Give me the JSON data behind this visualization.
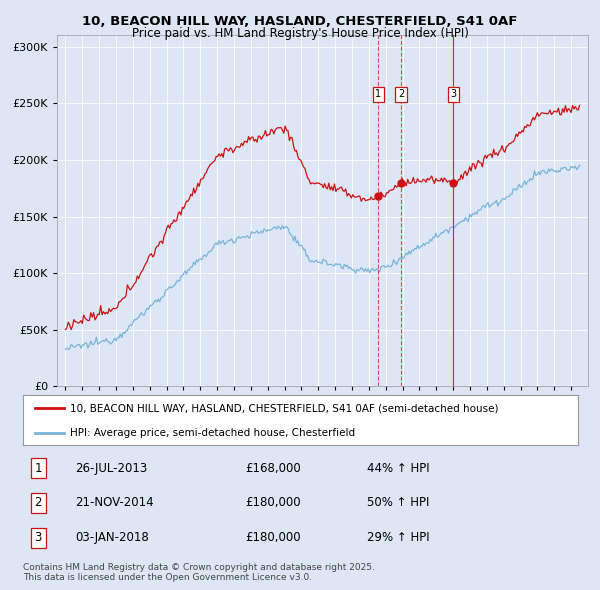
{
  "title_line1": "10, BEACON HILL WAY, HASLAND, CHESTERFIELD, S41 0AF",
  "title_line2": "Price paid vs. HM Land Registry's House Price Index (HPI)",
  "background_color": "#dce6f5",
  "plot_bg_color": "#dce6f5",
  "red_line_label": "10, BEACON HILL WAY, HASLAND, CHESTERFIELD, S41 0AF (semi-detached house)",
  "blue_line_label": "HPI: Average price, semi-detached house, Chesterfield",
  "sale_markers": [
    {
      "date": 2013.57,
      "price": 168000,
      "label": "1"
    },
    {
      "date": 2014.9,
      "price": 180000,
      "label": "2"
    },
    {
      "date": 2018.01,
      "price": 180000,
      "label": "3"
    }
  ],
  "sale_annotations": [
    {
      "label": "1",
      "date_str": "26-JUL-2013",
      "price_str": "£168,000",
      "hpi_str": "44% ↑ HPI"
    },
    {
      "label": "2",
      "date_str": "21-NOV-2014",
      "price_str": "£180,000",
      "hpi_str": "50% ↑ HPI"
    },
    {
      "label": "3",
      "date_str": "03-JAN-2018",
      "price_str": "£180,000",
      "hpi_str": "29% ↑ HPI"
    }
  ],
  "footer": "Contains HM Land Registry data © Crown copyright and database right 2025.\nThis data is licensed under the Open Government Licence v3.0.",
  "ylim": [
    0,
    310000
  ],
  "xlim": [
    1994.5,
    2026.0
  ],
  "yticks": [
    0,
    50000,
    100000,
    150000,
    200000,
    250000,
    300000
  ],
  "ytick_labels": [
    "£0",
    "£50K",
    "£100K",
    "£150K",
    "£200K",
    "£250K",
    "£300K"
  ]
}
